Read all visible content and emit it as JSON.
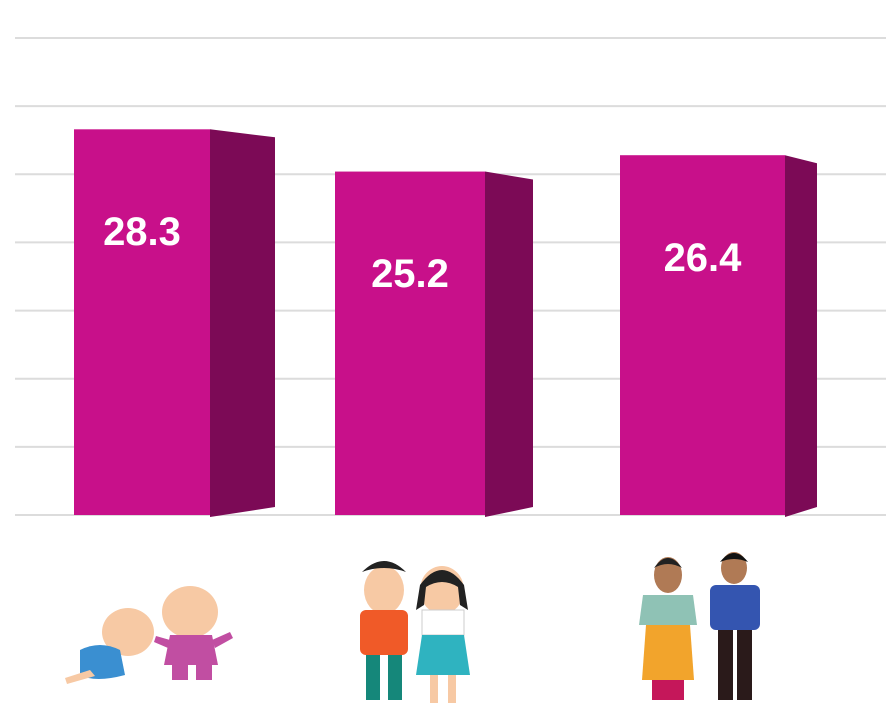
{
  "chart_data": {
    "type": "bar3d",
    "categories": [
      null,
      null,
      null
    ],
    "values": [
      28.3,
      25.2,
      26.4
    ],
    "color": "#c8108a",
    "side_color": "#7c0a56",
    "ylim": [
      0,
      35
    ],
    "yticks": [
      0,
      5,
      10,
      15,
      20,
      25,
      30,
      35
    ],
    "grid": true
  }
}
